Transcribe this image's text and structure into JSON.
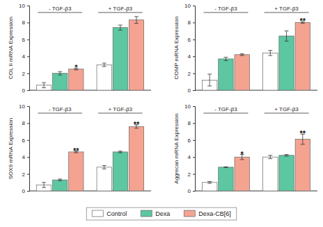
{
  "chart_data": [
    {
      "type": "bar",
      "y_label": "COL II mRNA Expression",
      "categories": [
        "- TGF-β3",
        "+ TGF-β3"
      ],
      "ylim": [
        0,
        10
      ],
      "yticks": [
        0,
        2,
        4,
        6,
        8,
        10
      ],
      "tick_labels": "y",
      "legend": "bottom",
      "series": [
        {
          "name": "Control",
          "color": "#ffffff",
          "values": [
            0.6,
            3.0
          ],
          "errors": [
            0.3,
            0.2
          ],
          "significance": [
            null,
            null
          ]
        },
        {
          "name": "Dexa",
          "color": "#5cc7a0",
          "values": [
            2.0,
            7.4
          ],
          "errors": [
            0.2,
            0.3
          ],
          "significance": [
            null,
            null
          ]
        },
        {
          "name": "Dexa-CB[6]",
          "color": "#f5a391",
          "values": [
            2.5,
            8.3
          ],
          "errors": [
            0.1,
            0.4
          ],
          "significance": [
            "*",
            null
          ]
        }
      ]
    },
    {
      "type": "bar",
      "y_label": "COMP mRNA Expression",
      "categories": [
        "- TGF-β3",
        "+ TGF-β3"
      ],
      "ylim": [
        0,
        10
      ],
      "yticks": [
        0,
        2,
        4,
        6,
        8,
        10
      ],
      "tick_labels": "y",
      "series": [
        {
          "color": "#ffffff",
          "values": [
            1.2,
            4.4
          ],
          "errors": [
            0.7,
            0.3
          ],
          "significance": [
            null,
            null
          ]
        },
        {
          "color": "#5cc7a0",
          "values": [
            3.7,
            6.4
          ],
          "errors": [
            0.2,
            0.6
          ],
          "significance": [
            null,
            null
          ]
        },
        {
          "color": "#f5a391",
          "values": [
            4.2,
            8.0
          ],
          "errors": [
            0.1,
            0.1
          ],
          "significance": [
            null,
            "**"
          ]
        }
      ]
    },
    {
      "type": "bar",
      "y_label": "SOX9 mRNA Expression",
      "categories": [
        "- TGF-β3",
        "+ TGF-β3"
      ],
      "ylim": [
        0,
        10
      ],
      "yticks": [
        0,
        2,
        4,
        6,
        8,
        10
      ],
      "tick_labels": "y",
      "series": [
        {
          "color": "#ffffff",
          "values": [
            0.7,
            2.8
          ],
          "errors": [
            0.3,
            0.2
          ],
          "significance": [
            null,
            null
          ]
        },
        {
          "color": "#5cc7a0",
          "values": [
            1.3,
            4.6
          ],
          "errors": [
            0.1,
            0.1
          ],
          "significance": [
            null,
            null
          ]
        },
        {
          "color": "#f5a391",
          "values": [
            4.6,
            7.6
          ],
          "errors": [
            0.1,
            0.2
          ],
          "significance": [
            "**",
            "**"
          ]
        }
      ]
    },
    {
      "type": "bar",
      "y_label": "Aggrecan mRNA Expression",
      "categories": [
        "- TGF-β3",
        "+ TGF-β3"
      ],
      "ylim": [
        0,
        10
      ],
      "yticks": [
        0,
        2,
        4,
        6,
        8,
        10
      ],
      "tick_labels": "y",
      "series": [
        {
          "color": "#ffffff",
          "values": [
            1.0,
            4.0
          ],
          "errors": [
            0.1,
            0.2
          ],
          "significance": [
            null,
            null
          ]
        },
        {
          "color": "#5cc7a0",
          "values": [
            2.8,
            4.2
          ],
          "errors": [
            0.05,
            0.1
          ],
          "significance": [
            null,
            null
          ]
        },
        {
          "color": "#f5a391",
          "values": [
            4.0,
            6.1
          ],
          "errors": [
            0.3,
            0.6
          ],
          "significance": [
            "*",
            "**"
          ]
        }
      ]
    }
  ]
}
